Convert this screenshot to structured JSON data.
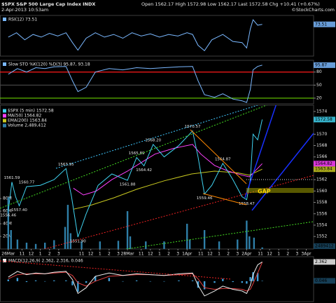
{
  "header": {
    "title": "$SPX S&P 500 Large Cap Index INDX",
    "date": "2-Apr-2013 10:53am",
    "quote": "Open 1562.17 High 1572.98 Low 1562.17 Last 1572.58 Chg +10.41 (+0.67%)",
    "credit": "©StockCharts.com"
  },
  "chart_data": [
    {
      "type": "line",
      "title": "RSI(12) 73.51",
      "xlim": [
        -0.9,
        33.3
      ],
      "ylim": [
        15,
        90
      ],
      "series": [
        {
          "name": "RSI(12)",
          "color": "#7ab8ff",
          "last_box": true,
          "x": [
            0,
            0.9,
            1.8,
            2.7,
            3.6,
            4.5,
            5.4,
            6.3,
            7.0,
            7.6,
            8.5,
            9.5,
            10.5,
            11.5,
            12.5,
            13.5,
            14.5,
            15.5,
            16.5,
            17.5,
            18.5,
            19.5,
            20.1,
            20.7,
            21.4,
            22.2,
            23.4,
            24.5,
            25.5,
            26.0,
            26.4,
            26.7,
            27.2,
            27.7
          ],
          "values": [
            50,
            58,
            45,
            55,
            50,
            57,
            52,
            58,
            40,
            26,
            48,
            58,
            50,
            55,
            48,
            58,
            52,
            56,
            50,
            55,
            52,
            58,
            55,
            35,
            25,
            45,
            55,
            42,
            40,
            30,
            65,
            82,
            72,
            73.51
          ]
        }
      ]
    },
    {
      "type": "line",
      "title": "Slow STO %K(120) %D(3) 95.87, 93.18",
      "xlim": [
        -0.9,
        33.3
      ],
      "ylim": [
        7,
        107
      ],
      "yticks": [
        20,
        50,
        80
      ],
      "tick_line_colors": [
        "#66cc00",
        "#444444",
        "#ff1a1a"
      ],
      "series": [
        {
          "name": "%K(120)",
          "color": "#7ab8ff",
          "last_box": true,
          "x": [
            0,
            1,
            2,
            3,
            4,
            5,
            6.3,
            7.0,
            7.6,
            8.5,
            9.5,
            11,
            12.5,
            14,
            15.5,
            17,
            18.6,
            20.1,
            20.7,
            21.4,
            22.5,
            23.4,
            24.5,
            25.5,
            26.0,
            26.4,
            26.7,
            27.2,
            27.7
          ],
          "values": [
            75,
            88,
            80,
            90,
            88,
            92,
            93,
            60,
            35,
            45,
            80,
            88,
            85,
            90,
            88,
            90,
            92,
            93,
            60,
            28,
            22,
            30,
            18,
            14,
            10,
            40,
            85,
            93,
            95.87
          ]
        }
      ]
    },
    {
      "type": "line",
      "xlim": [
        -0.9,
        33.3
      ],
      "ylim": [
        1549.8,
        1575.1
      ],
      "y2lim": [
        0,
        228000000
      ],
      "legend": "top-left",
      "gap_label": "GAP",
      "yticks": [
        1552,
        1554,
        1556,
        1558,
        1560,
        1562,
        1566,
        1568,
        1570,
        1574
      ],
      "y2ticks": [
        {
          "value": 20000000,
          "label": "20M"
        },
        {
          "value": 40000000,
          "label": "40M"
        },
        {
          "value": 60000000,
          "label": "60M"
        },
        {
          "value": 80000000,
          "label": "80M"
        }
      ],
      "xticks": [
        {
          "value": 0,
          "label": "26Mar"
        },
        {
          "value": 1.5,
          "label": "11"
        },
        {
          "value": 2.5,
          "label": "12"
        },
        {
          "value": 3.5,
          "label": "1"
        },
        {
          "value": 4.5,
          "label": "2"
        },
        {
          "value": 5.5,
          "label": "3"
        },
        {
          "value": 8,
          "label": "11"
        },
        {
          "value": 9,
          "label": "12"
        },
        {
          "value": 10,
          "label": "1"
        },
        {
          "value": 11,
          "label": "2"
        },
        {
          "value": 12,
          "label": "3"
        },
        {
          "value": 13,
          "label": "28Mar"
        },
        {
          "value": 14.5,
          "label": "11"
        },
        {
          "value": 15.5,
          "label": "12"
        },
        {
          "value": 16.5,
          "label": "1"
        },
        {
          "value": 17.5,
          "label": "2"
        },
        {
          "value": 18.5,
          "label": "3"
        },
        {
          "value": 19.5,
          "label": "1Apr"
        },
        {
          "value": 21,
          "label": "11"
        },
        {
          "value": 22,
          "label": "12"
        },
        {
          "value": 23,
          "label": "1"
        },
        {
          "value": 24,
          "label": "2"
        },
        {
          "value": 25,
          "label": "3"
        },
        {
          "value": 26,
          "label": "2Apr"
        },
        {
          "value": 27.5,
          "label": "11"
        },
        {
          "value": 28.5,
          "label": "12"
        },
        {
          "value": 29.5,
          "label": "1"
        },
        {
          "value": 30.5,
          "label": "2"
        },
        {
          "value": 31.5,
          "label": "3"
        },
        {
          "value": 32.5,
          "label": "3Apr"
        }
      ],
      "series": [
        {
          "name": "Volume 2,489,412",
          "type": "bar",
          "axis": "y2",
          "color": "#2f7fa8",
          "last_box": true,
          "x": [
            0,
            0.3,
            1,
            2,
            3,
            4,
            5,
            6.2,
            6.5,
            6.8,
            8,
            10,
            12,
            13,
            13.3,
            15,
            17,
            19.5,
            19.8,
            21.4,
            23,
            25,
            26,
            26.3,
            26.8,
            27.7
          ],
          "values": [
            82000000,
            30000000,
            15000000,
            10000000,
            8000000,
            10000000,
            14000000,
            35000000,
            70000000,
            25000000,
            12000000,
            12000000,
            13000000,
            60000000,
            20000000,
            12000000,
            12000000,
            40000000,
            15000000,
            30000000,
            12000000,
            15000000,
            45000000,
            20000000,
            18000000,
            2489412
          ]
        },
        {
          "name": "EMA(200) 1563.84",
          "color": "#c8c820",
          "last_box": true,
          "x": [
            7.1,
            9,
            11.5,
            14,
            17,
            20,
            22.5,
            25,
            26.3,
            27.7
          ],
          "values": [
            1556.8,
            1557.5,
            1558.8,
            1560.3,
            1561.8,
            1563,
            1563.5,
            1563.2,
            1562.8,
            1563.84
          ]
        },
        {
          "name": "MA(50) 1564.82",
          "color": "#ff40ff",
          "last_box": true,
          "x": [
            7.1,
            8.2,
            9.6,
            11.3,
            13,
            14.5,
            16,
            18,
            20.1,
            21,
            22.5,
            24,
            25.5,
            26.3,
            27.7
          ],
          "values": [
            1560.5,
            1559.3,
            1560,
            1562,
            1563.5,
            1565,
            1566.5,
            1567.5,
            1568.2,
            1566.5,
            1564.5,
            1563.5,
            1562.8,
            1562.5,
            1564.82
          ]
        },
        {
          "name": "$SPX (5 min) 1572.58",
          "color": "#3fd2f0",
          "last_box": true,
          "x": [
            0,
            0.4,
            0.8,
            1.2,
            2.0,
            3.5,
            5.0,
            6.3,
            6.9,
            7.6,
            8.5,
            9.8,
            11.3,
            13.0,
            14.0,
            14.8,
            15.8,
            17.0,
            18.6,
            20.1,
            20.7,
            21.4,
            22.2,
            23.4,
            24.5,
            25.5,
            26.0,
            26.4,
            26.7,
            27.2,
            27.7
          ],
          "values": [
            1556.46,
            1561.59,
            1559,
            1557.4,
            1560.77,
            1561,
            1562,
            1563.95,
            1559,
            1551.9,
            1556,
            1561,
            1563,
            1561.88,
            1565.89,
            1564.42,
            1568.2,
            1566,
            1568,
            1570.57,
            1566,
            1559.46,
            1561,
            1564.87,
            1562,
            1559,
            1558.47,
            1562,
            1570,
            1569,
            1572.58
          ]
        }
      ],
      "annotations": [
        {
          "x": 0,
          "y": 1556.46,
          "label": "1556.46"
        },
        {
          "x": 0.4,
          "y": 1561.59,
          "label": "1561.59"
        },
        {
          "x": 1.2,
          "y": 1557.4,
          "label": "1557.40"
        },
        {
          "x": 2.0,
          "y": 1560.77,
          "label": "1560.77"
        },
        {
          "x": 6.3,
          "y": 1563.95,
          "label": "1563.95"
        },
        {
          "x": 7.6,
          "y": 1551.9,
          "label": "1551.90"
        },
        {
          "x": 13.0,
          "y": 1561.88,
          "label": "1561.88"
        },
        {
          "x": 14.0,
          "y": 1565.89,
          "label": "1565.89"
        },
        {
          "x": 14.8,
          "y": 1564.42,
          "label": "1564.42"
        },
        {
          "x": 15.8,
          "y": 1568.2,
          "label": "1568.20"
        },
        {
          "x": 20.1,
          "y": 1570.57,
          "label": "1570.57"
        },
        {
          "x": 21.4,
          "y": 1559.46,
          "label": "1559.46"
        },
        {
          "x": 23.4,
          "y": 1564.87,
          "label": "1564.87"
        },
        {
          "x": 26.0,
          "y": 1558.47,
          "label": "1558.47"
        }
      ]
    },
    {
      "type": "line",
      "title": "MACD(12,26,9) 2.362, 2.316, 0.046",
      "xlim": [
        -0.9,
        33.3
      ],
      "ylim": [
        -2.5,
        3
      ],
      "series": [
        {
          "name": "Histogram",
          "type": "bar",
          "color": "#3f9fd8",
          "last_box": true,
          "x": [
            0,
            1,
            2,
            3,
            4,
            5,
            6.3,
            7.0,
            7.6,
            8.5,
            9.5,
            11,
            12.5,
            14,
            15.5,
            17,
            18.6,
            20.1,
            20.7,
            21.4,
            22.5,
            23.4,
            24.5,
            25.5,
            26.0,
            26.4,
            26.7,
            27.2,
            27.7
          ],
          "values": [
            0.2,
            0.4,
            -0.1,
            0.1,
            0,
            0.1,
            0.1,
            -0.5,
            -1.3,
            -0.2,
            0.6,
            0.4,
            0,
            0.1,
            0,
            0,
            0.1,
            0.1,
            -0.8,
            -1.0,
            -0.2,
            0.3,
            -0.1,
            -0.2,
            -0.3,
            0.5,
            1.1,
            1.0,
            0.046
          ]
        },
        {
          "name": "Signal",
          "color": "#e04040",
          "x": [
            0,
            1,
            2,
            3,
            4,
            5,
            6.3,
            7.0,
            7.6,
            8.5,
            9.5,
            11,
            12.5,
            14,
            15.5,
            17,
            18.6,
            20.1,
            20.7,
            21.4,
            22.5,
            23.4,
            24.5,
            25.5,
            26.0,
            26.4,
            26.7,
            27.2,
            27.7
          ],
          "values": [
            0.3,
            0.8,
            0.9,
            0.9,
            0.9,
            1.0,
            1.1,
            0.7,
            -0.2,
            -0.6,
            0.0,
            0.6,
            0.7,
            0.8,
            0.8,
            0.7,
            0.8,
            0.9,
            0.3,
            -0.8,
            -1.0,
            -0.9,
            -0.9,
            -1.0,
            -1.2,
            -1.0,
            -0.3,
            1.0,
            2.316
          ]
        },
        {
          "name": "MACD",
          "color": "#f0f0f0",
          "last_box": true,
          "x": [
            0,
            1,
            2,
            3,
            4,
            5,
            6.3,
            7.0,
            7.6,
            8.5,
            9.5,
            11,
            12.5,
            14,
            15.5,
            17,
            18.6,
            20.1,
            20.7,
            21.4,
            22.5,
            23.4,
            24.5,
            25.5,
            26.0,
            26.4,
            26.7,
            27.2,
            27.7
          ],
          "values": [
            0.5,
            1.2,
            0.8,
            1.0,
            0.9,
            1.1,
            1.2,
            0.2,
            -1.5,
            -0.8,
            0.6,
            1.0,
            0.7,
            0.9,
            0.8,
            0.7,
            0.9,
            1.0,
            -0.5,
            -1.8,
            -1.2,
            -0.6,
            -1.0,
            -1.2,
            -1.5,
            -0.5,
            0.8,
            2.0,
            2.362
          ]
        }
      ]
    }
  ]
}
